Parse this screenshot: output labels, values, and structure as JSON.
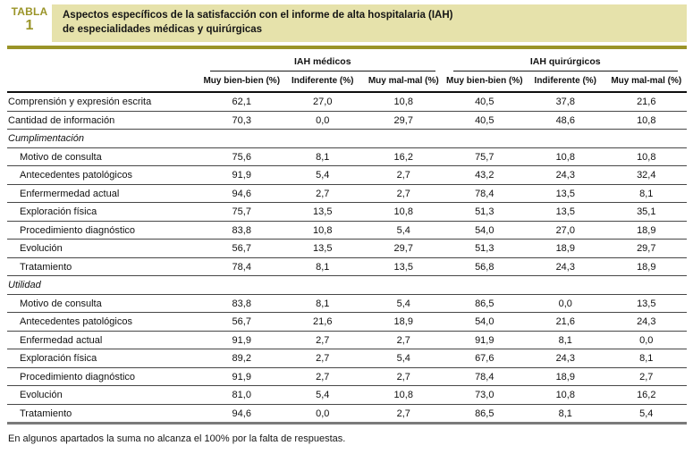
{
  "badge": {
    "word": "TABLA",
    "number": "1"
  },
  "title": {
    "line1": "Aspectos específicos de la satisfacción con el informe de alta hospitalaria (IAH)",
    "line2": "de especialidades médicas y quirúrgicas"
  },
  "columns": {
    "groups": [
      "IAH médicos",
      "IAH quirúrgicos"
    ],
    "subheaders": [
      "Muy bien-bien (%)",
      "Indiferente (%)",
      "Muy mal-mal (%)",
      "Muy bien-bien (%)",
      "Indiferente (%)",
      "Muy mal-mal (%)"
    ]
  },
  "rows": [
    {
      "label": "Comprensión y expresión escrita",
      "section": false,
      "indent": false,
      "values": [
        "62,1",
        "27,0",
        "10,8",
        "40,5",
        "37,8",
        "21,6"
      ]
    },
    {
      "label": "Cantidad de información",
      "section": false,
      "indent": false,
      "values": [
        "70,3",
        "0,0",
        "29,7",
        "40,5",
        "48,6",
        "10,8"
      ]
    },
    {
      "label": "Cumplimentación",
      "section": true,
      "indent": false,
      "values": []
    },
    {
      "label": "Motivo de consulta",
      "section": false,
      "indent": true,
      "values": [
        "75,6",
        "8,1",
        "16,2",
        "75,7",
        "10,8",
        "10,8"
      ]
    },
    {
      "label": "Antecedentes patológicos",
      "section": false,
      "indent": true,
      "values": [
        "91,9",
        "5,4",
        "2,7",
        "43,2",
        "24,3",
        "32,4"
      ]
    },
    {
      "label": "Enfermermedad actual",
      "section": false,
      "indent": true,
      "values": [
        "94,6",
        "2,7",
        "2,7",
        "78,4",
        "13,5",
        "8,1"
      ]
    },
    {
      "label": "Exploración física",
      "section": false,
      "indent": true,
      "values": [
        "75,7",
        "13,5",
        "10,8",
        "51,3",
        "13,5",
        "35,1"
      ]
    },
    {
      "label": "Procedimiento diagnóstico",
      "section": false,
      "indent": true,
      "values": [
        "83,8",
        "10,8",
        "5,4",
        "54,0",
        "27,0",
        "18,9"
      ]
    },
    {
      "label": "Evolución",
      "section": false,
      "indent": true,
      "values": [
        "56,7",
        "13,5",
        "29,7",
        "51,3",
        "18,9",
        "29,7"
      ]
    },
    {
      "label": "Tratamiento",
      "section": false,
      "indent": true,
      "values": [
        "78,4",
        "8,1",
        "13,5",
        "56,8",
        "24,3",
        "18,9"
      ]
    },
    {
      "label": "Utilidad",
      "section": true,
      "indent": false,
      "values": []
    },
    {
      "label": "Motivo de consulta",
      "section": false,
      "indent": true,
      "values": [
        "83,8",
        "8,1",
        "5,4",
        "86,5",
        "0,0",
        "13,5"
      ]
    },
    {
      "label": "Antecedentes patológicos",
      "section": false,
      "indent": true,
      "values": [
        "56,7",
        "21,6",
        "18,9",
        "54,0",
        "21,6",
        "24,3"
      ]
    },
    {
      "label": "Enfermedad actual",
      "section": false,
      "indent": true,
      "values": [
        "91,9",
        "2,7",
        "2,7",
        "91,9",
        "8,1",
        "0,0"
      ]
    },
    {
      "label": "Exploración física",
      "section": false,
      "indent": true,
      "values": [
        "89,2",
        "2,7",
        "5,4",
        "67,6",
        "24,3",
        "8,1"
      ]
    },
    {
      "label": "Procedimiento diagnóstico",
      "section": false,
      "indent": true,
      "values": [
        "91,9",
        "2,7",
        "2,7",
        "78,4",
        "18,9",
        "2,7"
      ]
    },
    {
      "label": "Evolución",
      "section": false,
      "indent": true,
      "values": [
        "81,0",
        "5,4",
        "10,8",
        "73,0",
        "10,8",
        "16,2"
      ]
    },
    {
      "label": "Tratamiento",
      "section": false,
      "indent": true,
      "values": [
        "94,6",
        "0,0",
        "2,7",
        "86,5",
        "8,1",
        "5,4"
      ]
    }
  ],
  "footnote": "En algunos apartados la suma no alcanza el 100% por la falta de respuestas.",
  "colors": {
    "accent_olive": "#9a9428",
    "banner_background": "#e6e2ab",
    "text": "#111111",
    "bottom_border": "#7a7a7a"
  }
}
